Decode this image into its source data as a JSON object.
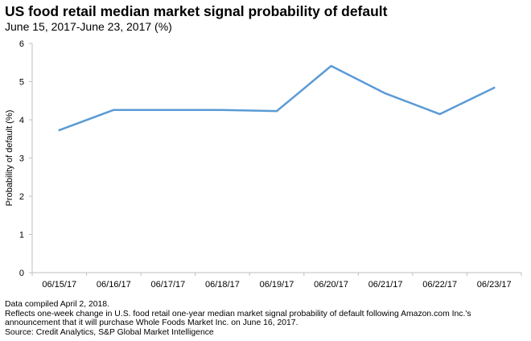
{
  "chart_data": {
    "type": "line",
    "title": "US food retail median market signal probability of default",
    "subtitle": "June 15, 2017-June 23, 2017 (%)",
    "xlabel": "",
    "ylabel": "Probability of default (%)",
    "categories": [
      "06/15/17",
      "06/16/17",
      "06/17/17",
      "06/18/17",
      "06/19/17",
      "06/20/17",
      "06/21/17",
      "06/22/17",
      "06/23/17"
    ],
    "values": [
      3.73,
      4.26,
      4.26,
      4.26,
      4.23,
      5.41,
      4.69,
      4.15,
      4.84
    ],
    "ylim": [
      0,
      6
    ],
    "yticks": [
      "0",
      "1",
      "2",
      "3",
      "4",
      "5",
      "6"
    ],
    "grid": false,
    "legend": "none",
    "line_color": "#5b9bd5"
  },
  "footnotes": [
    "Data compiled April 2, 2018.",
    "Reflects one-week change in U.S. food retail one-year median market signal probability of default following Amazon.com Inc.'s",
    "announcement that it will purchase Whole Foods Market Inc. on June 16, 2017.",
    "Source: Credit Analytics, S&P Global Market Intelligence"
  ]
}
